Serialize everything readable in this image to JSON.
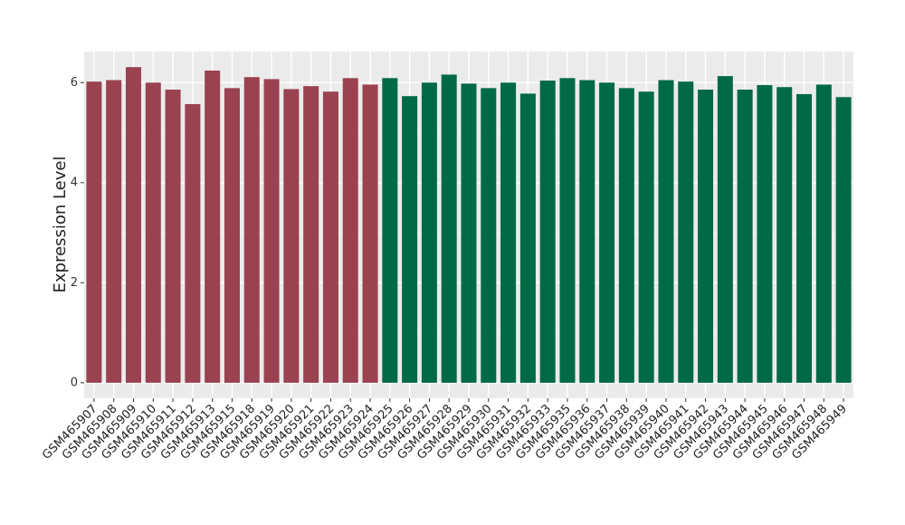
{
  "chart_data": {
    "type": "bar",
    "y_label": "Expression Level",
    "categories": [
      "GSM465907",
      "GSM465908",
      "GSM465909",
      "GSM465910",
      "GSM465911",
      "GSM465912",
      "GSM465913",
      "GSM465915",
      "GSM465918",
      "GSM465919",
      "GSM465920",
      "GSM465921",
      "GSM465922",
      "GSM465923",
      "GSM465924",
      "GSM465925",
      "GSM465926",
      "GSM465927",
      "GSM465928",
      "GSM465929",
      "GSM465930",
      "GSM465931",
      "GSM465932",
      "GSM465933",
      "GSM465935",
      "GSM465936",
      "GSM465937",
      "GSM465938",
      "GSM465939",
      "GSM465940",
      "GSM465941",
      "GSM465942",
      "GSM465943",
      "GSM465944",
      "GSM465945",
      "GSM465946",
      "GSM465947",
      "GSM465948",
      "GSM465949"
    ],
    "values": [
      6.02,
      6.05,
      6.31,
      6.0,
      5.86,
      5.57,
      6.24,
      5.89,
      6.11,
      6.07,
      5.87,
      5.93,
      5.82,
      6.09,
      5.96,
      6.09,
      5.73,
      6.0,
      6.16,
      5.98,
      5.89,
      6.0,
      5.78,
      6.04,
      6.09,
      6.05,
      6.0,
      5.89,
      5.82,
      6.05,
      6.02,
      5.86,
      6.13,
      5.86,
      5.95,
      5.91,
      5.77,
      5.96,
      5.71
    ],
    "colors": [
      "#9a4250",
      "#9a4250",
      "#9a4250",
      "#9a4250",
      "#9a4250",
      "#9a4250",
      "#9a4250",
      "#9a4250",
      "#9a4250",
      "#9a4250",
      "#9a4250",
      "#9a4250",
      "#9a4250",
      "#9a4250",
      "#9a4250",
      "#006a45",
      "#006a45",
      "#006a45",
      "#006a45",
      "#006a45",
      "#006a45",
      "#006a45",
      "#006a45",
      "#006a45",
      "#006a45",
      "#006a45",
      "#006a45",
      "#006a45",
      "#006a45",
      "#006a45",
      "#006a45",
      "#006a45",
      "#006a45",
      "#006a45",
      "#006a45",
      "#006a45",
      "#006a45",
      "#006a45",
      "#006a45"
    ],
    "ylim": [
      -0.31,
      6.62
    ],
    "yticks": [
      0,
      2,
      4,
      6
    ],
    "minor_yticks": [
      1,
      3,
      5
    ],
    "grid": true
  }
}
